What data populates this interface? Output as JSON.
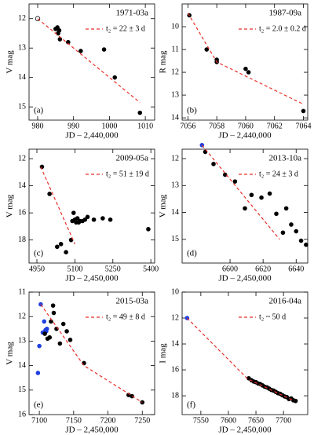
{
  "chart_data": [
    {
      "type": "scatter",
      "title": "1971-03a",
      "panel_label": "(a)",
      "xlabel": "JD – 2,440,000",
      "ylabel": "V mag",
      "xlim": [
        977.6,
        1012.6
      ],
      "ylim": [
        15.45,
        11.5
      ],
      "xticks": [
        980,
        990,
        1000,
        1010
      ],
      "yticks": [
        12,
        13,
        14,
        15
      ],
      "series": [
        {
          "color": "#000000",
          "marker": "open",
          "x": [
            980
          ],
          "values": [
            12.0
          ]
        },
        {
          "color": "#000000",
          "marker": "filled",
          "x": [
            985,
            985.5,
            985.7,
            986,
            986.2,
            988.5,
            992,
            998.5,
            1001.5,
            1008.5
          ],
          "values": [
            12.35,
            12.3,
            12.5,
            12.4,
            12.7,
            12.8,
            13.1,
            13.05,
            14.0,
            15.2
          ]
        },
        {
          "name": "t₂ = 22 ± 3 d",
          "color": "#e8302a",
          "line": "dashed",
          "x": [
            980,
            1008.5
          ],
          "values": [
            12.0,
            14.85
          ]
        }
      ]
    },
    {
      "type": "scatter",
      "title": "1987-09a",
      "panel_label": "(b)",
      "xlabel": "JD – 2,440,000",
      "ylabel": "R mag",
      "xlim": [
        7055.6,
        7064.3
      ],
      "ylim": [
        14.1,
        9.0
      ],
      "xticks": [
        7056,
        7058,
        7060,
        7062,
        7064
      ],
      "yticks": [
        10,
        11,
        12,
        13,
        14
      ],
      "series": [
        {
          "color": "#000000",
          "marker": "filled",
          "x": [
            7056.1,
            7057.3,
            7058,
            7058,
            7060,
            7060.2,
            7064
          ],
          "values": [
            9.5,
            11.0,
            11.45,
            11.55,
            11.85,
            12.0,
            13.7
          ]
        },
        {
          "name": "t₂ = 2.0 ± 0.2 d",
          "color": "#e8302a",
          "line": "dashed",
          "x": [
            7056,
            7058,
            7064
          ],
          "values": [
            9.4,
            11.55,
            13.4
          ]
        }
      ]
    },
    {
      "type": "scatter",
      "title": "2009-05a",
      "panel_label": "(c)",
      "xlabel": "JD – 2,450,000",
      "ylabel": "V mag",
      "xlim": [
        4919,
        5415
      ],
      "ylim": [
        19.7,
        11.3
      ],
      "xticks": [
        4950,
        5100,
        5250,
        5400
      ],
      "yticks": [
        12,
        14,
        16,
        18
      ],
      "series": [
        {
          "color": "#000000",
          "marker": "filled",
          "x": [
            4970,
            5000,
            5030,
            5045,
            5065,
            5085,
            5090,
            5095,
            5100,
            5105,
            5110,
            5115,
            5120,
            5130,
            5140,
            5150,
            5175,
            5210,
            5240,
            5390
          ],
          "values": [
            12.6,
            14.6,
            18.5,
            18.3,
            18.9,
            18.0,
            16.6,
            16.0,
            16.5,
            16.7,
            16.4,
            16.7,
            16.6,
            16.6,
            16.5,
            16.3,
            16.5,
            16.4,
            16.5,
            17.2
          ]
        },
        {
          "name": "t₂ = 51 ± 19 d",
          "color": "#e8302a",
          "line": "dashed",
          "x": [
            4965,
            5100
          ],
          "values": [
            12.6,
            18.3
          ]
        }
      ]
    },
    {
      "type": "scatter",
      "title": "2013-10a",
      "panel_label": "(d)",
      "xlabel": "JD – 2,450,000",
      "ylabel": "V mag",
      "xlim": [
        6571,
        6647
      ],
      "ylim": [
        15.88,
        11.65
      ],
      "xticks": [
        6600,
        6620,
        6640
      ],
      "yticks": [
        12,
        13,
        14,
        15
      ],
      "series": [
        {
          "color": "#1f3fe0",
          "marker": "filled",
          "x": [
            6583
          ],
          "values": [
            11.5
          ]
        },
        {
          "color": "#000000",
          "marker": "filled",
          "x": [
            6585,
            6590,
            6597,
            6603,
            6609,
            6613,
            6619,
            6624,
            6628,
            6632,
            6634,
            6637,
            6640,
            6643,
            6646
          ],
          "values": [
            11.75,
            12.2,
            12.6,
            12.85,
            13.85,
            13.35,
            13.45,
            13.3,
            14.05,
            14.75,
            13.85,
            14.45,
            14.7,
            15.05,
            15.2
          ]
        },
        {
          "name": "t₂ = 24 ± 3 d",
          "color": "#e8302a",
          "line": "dashed",
          "x": [
            6583,
            6630
          ],
          "values": [
            11.5,
            15.0
          ]
        }
      ]
    },
    {
      "type": "scatter",
      "title": "2015-03a",
      "panel_label": "(e)",
      "xlabel": "JD – 2,450,000",
      "ylabel": "V mag",
      "xlim": [
        7085,
        7268
      ],
      "ylim": [
        16,
        11
      ],
      "xticks": [
        7100,
        7150,
        7200,
        7250
      ],
      "yticks": [
        11,
        12,
        13,
        14,
        15,
        16
      ],
      "series": [
        {
          "color": "#1f3fe0",
          "marker": "filled",
          "x": [
            7102,
            7107,
            7109,
            7110,
            7111,
            7105,
            7100,
            7098
          ],
          "values": [
            11.5,
            12.2,
            12.55,
            12.6,
            12.5,
            12.65,
            13.2,
            14.3
          ]
        },
        {
          "color": "#000000",
          "marker": "filled",
          "x": [
            7108,
            7112,
            7115,
            7117,
            7120,
            7121,
            7125,
            7130,
            7135,
            7140,
            7145,
            7165,
            7230,
            7235,
            7250
          ],
          "values": [
            12.7,
            12.9,
            12.85,
            12.2,
            11.55,
            11.85,
            12.5,
            13.1,
            12.3,
            12.6,
            12.95,
            13.9,
            15.2,
            15.25,
            15.5
          ]
        },
        {
          "name": "t₂ = 49 ± 8 d",
          "color": "#e8302a",
          "line": "dashed",
          "x": [
            7102,
            7165,
            7250
          ],
          "values": [
            11.5,
            14.0,
            15.5
          ]
        }
      ]
    },
    {
      "type": "scatter",
      "title": "2016-04a",
      "panel_label": "(f)",
      "xlabel": "JD – 2,450,000",
      "ylabel": "I mag",
      "xlim": [
        7516,
        7744
      ],
      "ylim": [
        19.45,
        10
      ],
      "xticks": [
        7550,
        7600,
        7650,
        7700
      ],
      "yticks": [
        10,
        12,
        14,
        16,
        18
      ],
      "series": [
        {
          "color": "#1f3fe0",
          "marker": "filled",
          "x": [
            7525
          ],
          "values": [
            12.0
          ]
        },
        {
          "color": "#000000",
          "marker": "filled",
          "x": [
            7637,
            7642,
            7646,
            7650,
            7654,
            7658,
            7662,
            7666,
            7670,
            7674,
            7678,
            7682,
            7686,
            7690,
            7694,
            7698,
            7702,
            7706,
            7710,
            7714,
            7718,
            7722
          ],
          "values": [
            16.65,
            16.8,
            16.9,
            16.95,
            17.05,
            17.1,
            17.2,
            17.3,
            17.35,
            17.45,
            17.55,
            17.6,
            17.7,
            17.8,
            17.85,
            17.95,
            18.05,
            18.1,
            18.25,
            18.2,
            18.35,
            18.4
          ]
        },
        {
          "name": "t₂ ~ 50 d",
          "color": "#e8302a",
          "line": "dashed",
          "x": [
            7525,
            7635,
            7720
          ],
          "values": [
            12.0,
            16.7,
            18.4
          ]
        }
      ]
    }
  ]
}
